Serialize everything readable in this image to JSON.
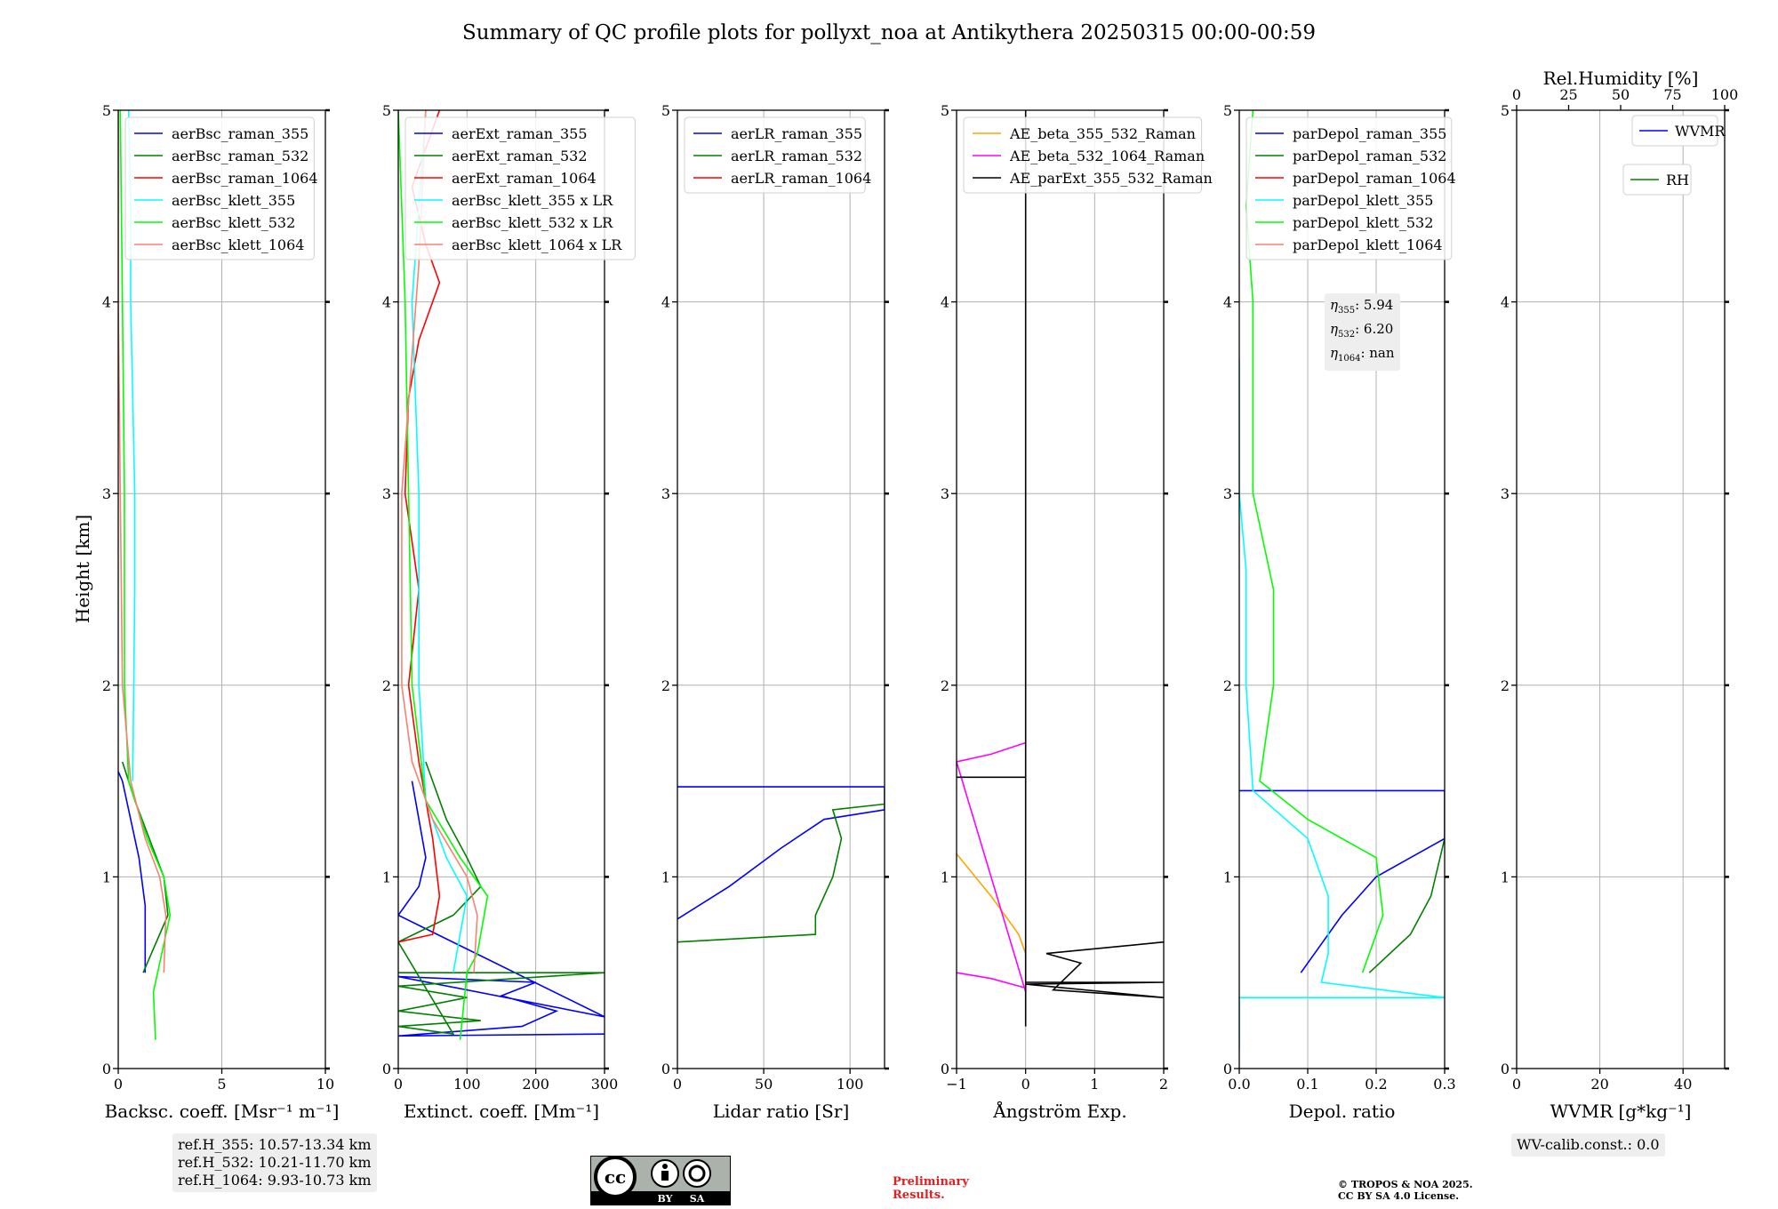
{
  "title": "Summary of QC profile plots for pollyxt_noa at Antikythera 20250315 00:00-00:59",
  "ylabel": "Height [km]",
  "refH": [
    "ref.H_355: 10.57-13.34 km",
    "ref.H_532: 10.21-11.70 km",
    "ref.H_1064: 9.93-10.73 km"
  ],
  "wv_calib": "WV-calib.const.: 0.0",
  "license": {
    "cc": "cc",
    "by": "BY",
    "sa": "SA"
  },
  "preliminary": [
    "Preliminary",
    "Results."
  ],
  "copyright": [
    "© TROPOS & NOA 2025.",
    "CC BY SA 4.0 License."
  ],
  "eta_box": [
    {
      "sym": "η",
      "sub": "355",
      "val": ": 5.94"
    },
    {
      "sym": "η",
      "sub": "532",
      "val": ": 6.20"
    },
    {
      "sym": "η",
      "sub": "1064",
      "val": ": nan"
    }
  ],
  "colors": {
    "blue": "#0000ff",
    "green": "#008000",
    "red": "#ff0000",
    "cyan": "#00ffff",
    "lime": "#00ff00",
    "salmon": "#fa8072",
    "orange": "#ffa500",
    "magenta": "#ff00ff",
    "black": "#000000",
    "grid": "#b0b0b0"
  },
  "chart_data": [
    {
      "type": "line",
      "xlabel": "Backsc. coeff. [Msr⁻¹ m⁻¹]",
      "xlim": [
        0,
        10
      ],
      "ylim": [
        0,
        5
      ],
      "xticks": [
        0,
        5,
        10
      ],
      "yticks": [
        0,
        1,
        2,
        3,
        4,
        5
      ],
      "legend": "top-left",
      "series": [
        {
          "name": "aerBsc_raman_355",
          "color": "#0000ff",
          "points": [
            [
              1.3,
              0.5
            ],
            [
              1.3,
              0.85
            ],
            [
              1.0,
              1.1
            ],
            [
              0.6,
              1.3
            ],
            [
              0.2,
              1.5
            ],
            [
              0,
              1.55
            ]
          ]
        },
        {
          "name": "aerBsc_raman_532",
          "color": "#008000",
          "points": [
            [
              1.2,
              0.5
            ],
            [
              2.4,
              0.8
            ],
            [
              2.2,
              1.0
            ],
            [
              1.5,
              1.2
            ],
            [
              0.8,
              1.4
            ],
            [
              0.2,
              1.6
            ]
          ]
        },
        {
          "name": "aerBsc_raman_1064",
          "color": "#ff0000",
          "points": []
        },
        {
          "name": "aerBsc_klett_355",
          "color": "#00ffff",
          "points": [
            [
              0.7,
              1.5
            ],
            [
              0.8,
              2.5
            ],
            [
              0.8,
              3.0
            ],
            [
              0.7,
              3.5
            ],
            [
              0.6,
              4.0
            ],
            [
              0.6,
              4.5
            ],
            [
              0.5,
              5.0
            ]
          ]
        },
        {
          "name": "aerBsc_klett_532",
          "color": "#00ff00",
          "points": [
            [
              1.8,
              0.15
            ],
            [
              1.7,
              0.4
            ],
            [
              2.5,
              0.8
            ],
            [
              2.2,
              1.0
            ],
            [
              1.4,
              1.2
            ],
            [
              0.5,
              1.5
            ],
            [
              0.3,
              2.0
            ],
            [
              0.3,
              3.0
            ],
            [
              0.2,
              4.0
            ],
            [
              0.1,
              5.0
            ]
          ]
        },
        {
          "name": "aerBsc_klett_1064",
          "color": "#fa8072",
          "points": [
            [
              2.2,
              0.5
            ],
            [
              2.3,
              0.8
            ],
            [
              2.0,
              1.0
            ],
            [
              1.3,
              1.2
            ],
            [
              0.6,
              1.5
            ],
            [
              0.2,
              2.0
            ],
            [
              0.1,
              3.0
            ],
            [
              0,
              4.0
            ],
            [
              0,
              5.0
            ]
          ]
        }
      ]
    },
    {
      "type": "line",
      "xlabel": "Extinct. coeff. [Mm⁻¹]",
      "xlim": [
        0,
        300
      ],
      "ylim": [
        0,
        5
      ],
      "xticks": [
        0,
        100,
        200,
        300
      ],
      "yticks": [
        0,
        1,
        2,
        3,
        4,
        5
      ],
      "legend": "top-left",
      "series": [
        {
          "name": "aerExt_raman_355",
          "color": "#0000ff",
          "points": [
            [
              300,
              0.18
            ],
            [
              0,
              0.17
            ],
            [
              180,
              0.22
            ],
            [
              230,
              0.3
            ],
            [
              150,
              0.38
            ],
            [
              200,
              0.45
            ],
            [
              0,
              0.48
            ],
            [
              300,
              0.27
            ],
            [
              0,
              0.8
            ],
            [
              30,
              0.95
            ],
            [
              40,
              1.1
            ],
            [
              30,
              1.3
            ],
            [
              20,
              1.5
            ]
          ]
        },
        {
          "name": "aerExt_raman_532",
          "color": "#008000",
          "points": [
            [
              0,
              0.5
            ],
            [
              300,
              0.5
            ],
            [
              0,
              0.43
            ],
            [
              100,
              0.37
            ],
            [
              0,
              0.3
            ],
            [
              120,
              0.25
            ],
            [
              0,
              0.22
            ],
            [
              80,
              0.18
            ],
            [
              0,
              0.66
            ],
            [
              80,
              0.8
            ],
            [
              120,
              0.95
            ],
            [
              100,
              1.1
            ],
            [
              70,
              1.3
            ],
            [
              40,
              1.6
            ]
          ]
        },
        {
          "name": "aerExt_raman_1064",
          "color": "#ff0000",
          "points": [
            [
              0,
              0.66
            ],
            [
              50,
              0.7
            ],
            [
              60,
              0.9
            ],
            [
              50,
              1.2
            ],
            [
              30,
              1.6
            ],
            [
              15,
              2.0
            ],
            [
              30,
              2.5
            ],
            [
              10,
              3.0
            ],
            [
              15,
              3.5
            ],
            [
              30,
              3.8
            ],
            [
              60,
              4.1
            ],
            [
              40,
              4.3
            ],
            [
              20,
              4.6
            ],
            [
              60,
              5.0
            ]
          ]
        },
        {
          "name": "aerBsc_klett_355 x LR",
          "color": "#00ffff",
          "points": [
            [
              80,
              0.5
            ],
            [
              100,
              0.9
            ],
            [
              70,
              1.1
            ],
            [
              40,
              1.4
            ],
            [
              30,
              2.0
            ],
            [
              30,
              3.0
            ],
            [
              20,
              4.0
            ],
            [
              40,
              5.0
            ]
          ]
        },
        {
          "name": "aerBsc_klett_532 x LR",
          "color": "#00ff00",
          "points": [
            [
              90,
              0.15
            ],
            [
              100,
              0.5
            ],
            [
              115,
              0.6
            ],
            [
              130,
              0.9
            ],
            [
              90,
              1.1
            ],
            [
              40,
              1.4
            ],
            [
              20,
              2.0
            ],
            [
              15,
              3.0
            ],
            [
              10,
              4.0
            ],
            [
              0,
              5.0
            ]
          ]
        },
        {
          "name": "aerBsc_klett_1064 x LR",
          "color": "#fa8072",
          "points": [
            [
              110,
              0.5
            ],
            [
              115,
              0.8
            ],
            [
              100,
              1.0
            ],
            [
              50,
              1.3
            ],
            [
              20,
              1.6
            ],
            [
              5,
              2.0
            ],
            [
              5,
              3.0
            ],
            [
              30,
              4.2
            ],
            [
              40,
              5.0
            ]
          ]
        }
      ]
    },
    {
      "type": "line",
      "xlabel": "Lidar ratio [Sr]",
      "xlim": [
        0,
        120
      ],
      "ylim": [
        0,
        5
      ],
      "xticks": [
        0,
        50,
        100
      ],
      "yticks": [
        0,
        1,
        2,
        3,
        4,
        5
      ],
      "legend": "top-left",
      "series": [
        {
          "name": "aerLR_raman_355",
          "color": "#0000ff",
          "points": [
            [
              0,
              0.78
            ],
            [
              30,
              0.95
            ],
            [
              60,
              1.15
            ],
            [
              85,
              1.3
            ],
            [
              120,
              1.35
            ],
            [
              120,
              1.47
            ],
            [
              0,
              1.47
            ]
          ]
        },
        {
          "name": "aerLR_raman_532",
          "color": "#008000",
          "points": [
            [
              0,
              0.66
            ],
            [
              80,
              0.7
            ],
            [
              80,
              0.8
            ],
            [
              90,
              1.0
            ],
            [
              95,
              1.2
            ],
            [
              90,
              1.35
            ],
            [
              120,
              1.38
            ]
          ]
        },
        {
          "name": "aerLR_raman_1064",
          "color": "#ff0000",
          "points": []
        }
      ]
    },
    {
      "type": "line",
      "xlabel": "Ångström Exp.",
      "xlim": [
        -1,
        2
      ],
      "ylim": [
        0,
        5
      ],
      "xticks": [
        -1,
        0,
        1,
        2
      ],
      "yticks": [
        0,
        1,
        2,
        3,
        4,
        5
      ],
      "legend": "top-left",
      "series": [
        {
          "name": "AE_beta_355_532_Raman",
          "color": "#ffa500",
          "points": [
            [
              -1,
              1.12
            ],
            [
              -0.5,
              0.9
            ],
            [
              -0.1,
              0.7
            ],
            [
              0,
              0.6
            ],
            [
              0,
              0.58
            ]
          ]
        },
        {
          "name": "AE_beta_532_1064_Raman",
          "color": "#ff00ff",
          "points": [
            [
              -1,
              0.5
            ],
            [
              -0.5,
              0.47
            ],
            [
              0,
              0.42
            ],
            [
              0,
              0.4
            ],
            [
              -1,
              1.6
            ],
            [
              -0.5,
              1.64
            ],
            [
              0,
              1.7
            ]
          ]
        },
        {
          "name": "AE_parExt_355_532_Raman",
          "color": "#000000",
          "points": [
            [
              -1,
              1.52
            ],
            [
              0,
              1.52
            ],
            [
              0,
              5.0
            ],
            [
              0,
              0.22
            ],
            [
              0,
              0.45
            ],
            [
              2,
              0.45
            ],
            [
              0,
              0.44
            ],
            [
              2,
              0.37
            ],
            [
              0.4,
              0.41
            ],
            [
              0.8,
              0.55
            ],
            [
              0.3,
              0.6
            ],
            [
              2,
              0.66
            ]
          ]
        }
      ]
    },
    {
      "type": "line",
      "xlabel": "Depol. ratio",
      "xlim": [
        0,
        0.3
      ],
      "ylim": [
        0,
        5
      ],
      "xticks": [
        0.0,
        0.1,
        0.2,
        0.3
      ],
      "yticks": [
        0,
        1,
        2,
        3,
        4,
        5
      ],
      "legend": "top-left",
      "series": [
        {
          "name": "parDepol_raman_355",
          "color": "#0000ff",
          "points": [
            [
              0.09,
              0.5
            ],
            [
              0.15,
              0.8
            ],
            [
              0.2,
              1.0
            ],
            [
              0.25,
              1.1
            ],
            [
              0.3,
              1.2
            ],
            [
              0.3,
              1.45
            ],
            [
              0,
              1.45
            ]
          ]
        },
        {
          "name": "parDepol_raman_532",
          "color": "#008000",
          "points": [
            [
              0.19,
              0.5
            ],
            [
              0.25,
              0.7
            ],
            [
              0.28,
              0.9
            ],
            [
              0.3,
              1.2
            ]
          ]
        },
        {
          "name": "parDepol_raman_1064",
          "color": "#ff0000",
          "points": []
        },
        {
          "name": "parDepol_klett_355",
          "color": "#00ffff",
          "points": [
            [
              0,
              0.1
            ],
            [
              0,
              0.37
            ],
            [
              0.3,
              0.37
            ],
            [
              0.12,
              0.45
            ],
            [
              0.13,
              0.6
            ],
            [
              0.13,
              0.9
            ],
            [
              0.1,
              1.2
            ],
            [
              0.02,
              1.45
            ],
            [
              0.01,
              2.0
            ],
            [
              0.01,
              2.6
            ],
            [
              0,
              3.0
            ],
            [
              0,
              3.7
            ]
          ]
        },
        {
          "name": "parDepol_klett_532",
          "color": "#00ff00",
          "points": [
            [
              0.18,
              0.5
            ],
            [
              0.21,
              0.8
            ],
            [
              0.2,
              1.1
            ],
            [
              0.1,
              1.3
            ],
            [
              0.03,
              1.5
            ],
            [
              0.05,
              2.0
            ],
            [
              0.05,
              2.5
            ],
            [
              0.02,
              3.0
            ],
            [
              0.02,
              3.5
            ],
            [
              0.02,
              4.0
            ],
            [
              0.01,
              4.5
            ],
            [
              0.02,
              5.0
            ]
          ]
        },
        {
          "name": "parDepol_klett_1064",
          "color": "#fa8072",
          "points": []
        }
      ]
    },
    {
      "type": "line",
      "xlabel": "WVMR [g*kg⁻¹]",
      "x2label": "Rel.Humidity [%]",
      "xlim": [
        0,
        50
      ],
      "ylim": [
        0,
        5
      ],
      "xticks": [
        0,
        20,
        40
      ],
      "yticks": [
        0,
        1,
        2,
        3,
        4,
        5
      ],
      "x2lim": [
        0,
        100
      ],
      "x2ticks": [
        0,
        25,
        50,
        75,
        100
      ],
      "legend": "top-right",
      "series": [
        {
          "name": "WVMR",
          "color": "#0000ff",
          "points": []
        },
        {
          "name": "RH",
          "color": "#008000",
          "points": []
        }
      ]
    }
  ]
}
